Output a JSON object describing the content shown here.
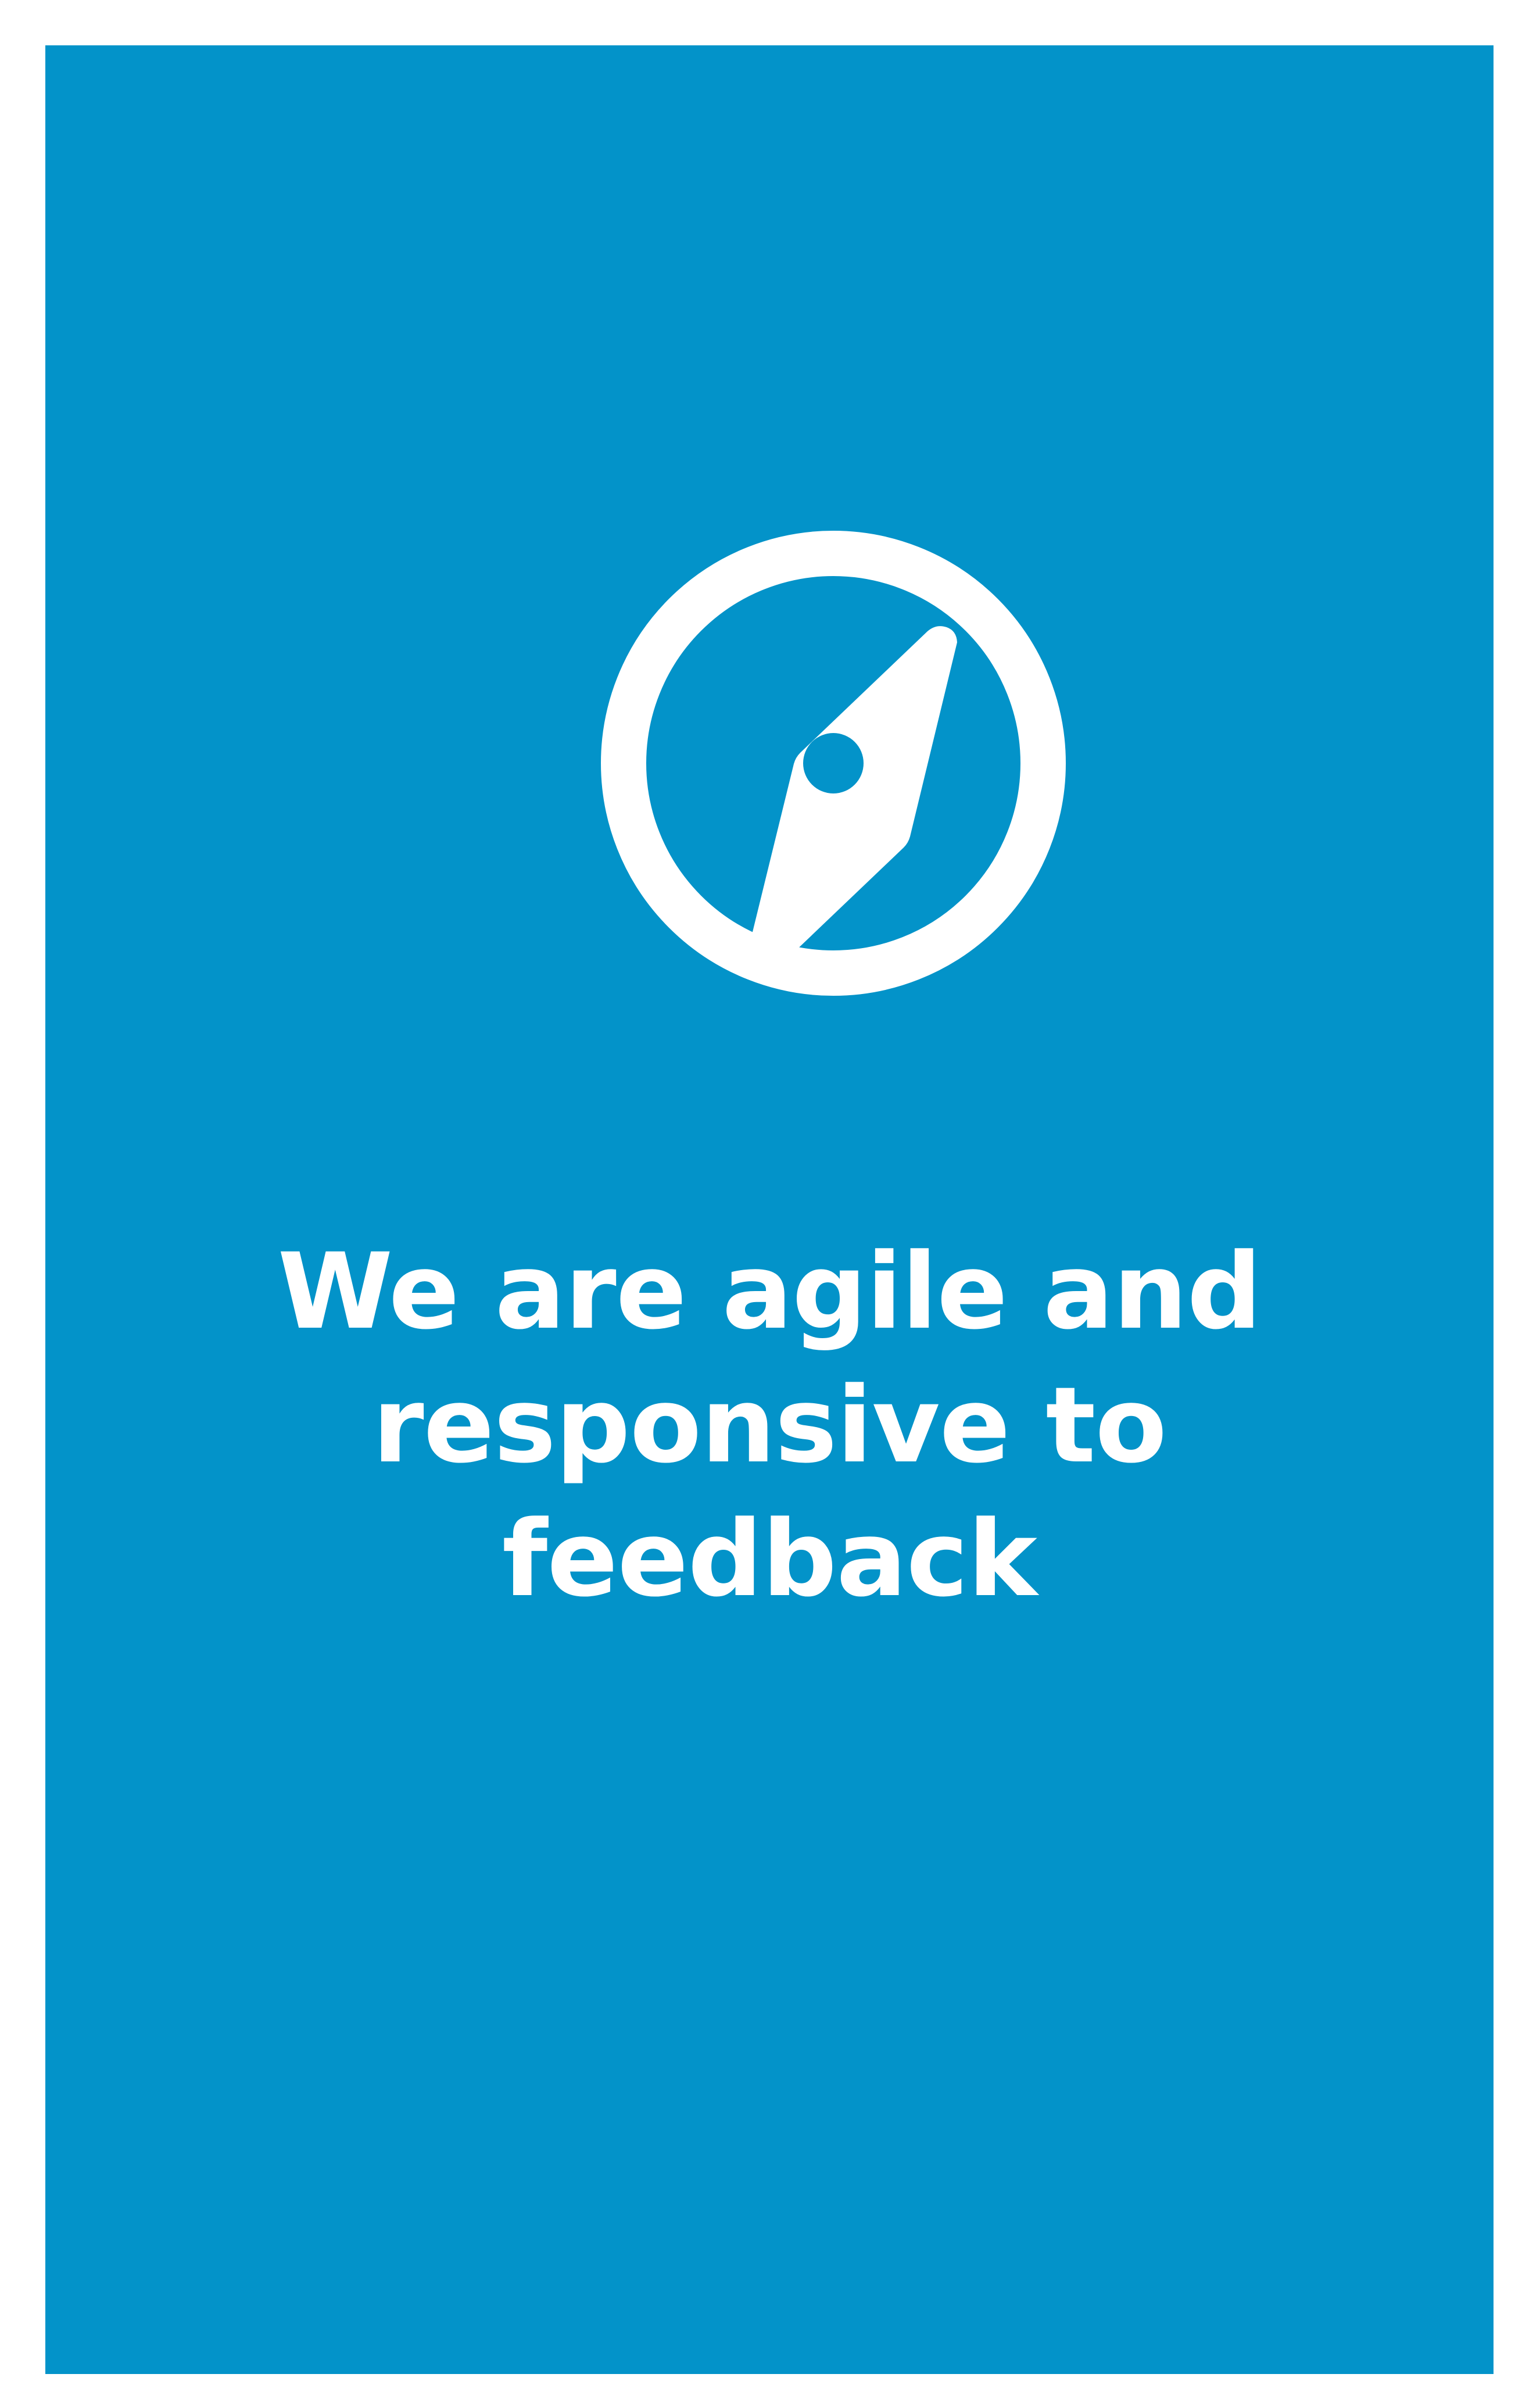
{
  "colors": {
    "page_background": "#ffffff",
    "panel_background": "#0393c9",
    "foreground": "#ffffff"
  },
  "icon": {
    "name": "compass-icon"
  },
  "headline": {
    "lines": [
      "We are agile and",
      "responsive to",
      "feedback"
    ]
  }
}
